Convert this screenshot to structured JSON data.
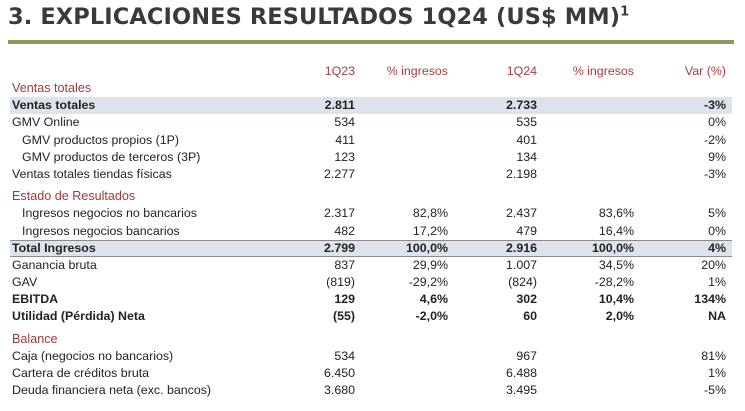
{
  "title": {
    "text": "3. EXPLICACIONES RESULTADOS 1Q24 (US$ MM)",
    "footnote": "1"
  },
  "header": {
    "q23": "1Q23",
    "pct1": "% ingresos",
    "q24": "1Q24",
    "pct2": "% ingresos",
    "var": "Var (%)"
  },
  "sections": {
    "ventas": "Ventas totales",
    "resultados": "Estado de Resultados",
    "balance": "Balance"
  },
  "rows": {
    "ventas_totales": {
      "label": "Ventas totales",
      "q23": "2.811",
      "pct1": "",
      "q24": "2.733",
      "pct2": "",
      "var": "-3%"
    },
    "gmv_online": {
      "label": "GMV Online",
      "q23": "534",
      "pct1": "",
      "q24": "535",
      "pct2": "",
      "var": "0%"
    },
    "gmv_1p": {
      "label": "GMV productos propios (1P)",
      "q23": "411",
      "pct1": "",
      "q24": "401",
      "pct2": "",
      "var": "-2%"
    },
    "gmv_3p": {
      "label": "GMV productos de terceros (3P)",
      "q23": "123",
      "pct1": "",
      "q24": "134",
      "pct2": "",
      "var": "9%"
    },
    "tiendas": {
      "label": "Ventas totales tiendas físicas",
      "q23": "2.277",
      "pct1": "",
      "q24": "2.198",
      "pct2": "",
      "var": "-3%"
    },
    "ing_no_banc": {
      "label": "Ingresos negocios no bancarios",
      "q23": "2.317",
      "pct1": "82,8%",
      "q24": "2.437",
      "pct2": "83,6%",
      "var": "5%"
    },
    "ing_banc": {
      "label": "Ingresos negocios bancarios",
      "q23": "482",
      "pct1": "17,2%",
      "q24": "479",
      "pct2": "16,4%",
      "var": "0%"
    },
    "total_ingresos": {
      "label": "Total Ingresos",
      "q23": "2.799",
      "pct1": "100,0%",
      "q24": "2.916",
      "pct2": "100,0%",
      "var": "4%"
    },
    "ganancia_bruta": {
      "label": "Ganancia bruta",
      "q23": "837",
      "pct1": "29,9%",
      "q24": "1.007",
      "pct2": "34,5%",
      "var": "20%"
    },
    "gav": {
      "label": "GAV",
      "q23": "(819)",
      "pct1": "-29,2%",
      "q24": "(824)",
      "pct2": "-28,2%",
      "var": "1%"
    },
    "ebitda": {
      "label": "EBITDA",
      "q23": "129",
      "pct1": "4,6%",
      "q24": "302",
      "pct2": "10,4%",
      "var": "134%"
    },
    "utilidad": {
      "label": "Utilidad (Pérdida) Neta",
      "q23": "(55)",
      "pct1": "-2,0%",
      "q24": "60",
      "pct2": "2,0%",
      "var": "NA"
    },
    "caja": {
      "label": "Caja (negocios no bancarios)",
      "q23": "534",
      "pct1": "",
      "q24": "967",
      "pct2": "",
      "var": "81%"
    },
    "cartera": {
      "label": "Cartera de créditos bruta",
      "q23": "6.450",
      "pct1": "",
      "q24": "6.488",
      "pct2": "",
      "var": "1%"
    },
    "deuda": {
      "label": "Deuda financiera neta (exc. bancos)",
      "q23": "3.680",
      "pct1": "",
      "q24": "3.495",
      "pct2": "",
      "var": "-5%"
    }
  }
}
